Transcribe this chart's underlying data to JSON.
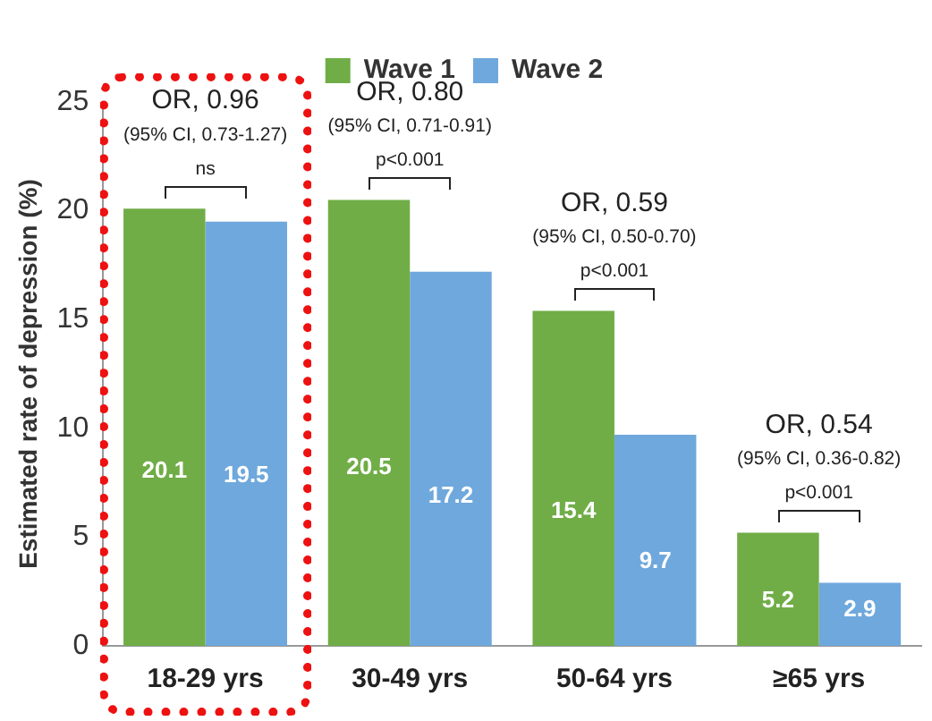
{
  "chart_data": {
    "type": "bar",
    "ylabel": "Estimated rate of depression (%)",
    "categories": [
      "18-29 yrs",
      "30-49 yrs",
      "50-64 yrs",
      "≥65 yrs"
    ],
    "series": [
      {
        "name": "Wave 1",
        "color": "#70ad47",
        "values": [
          20.1,
          20.5,
          15.4,
          5.2
        ]
      },
      {
        "name": "Wave 2",
        "color": "#6fa8dc",
        "values": [
          19.5,
          17.2,
          9.7,
          2.9
        ]
      }
    ],
    "ylim": [
      0,
      25
    ],
    "yticks": [
      0,
      5,
      10,
      15,
      20,
      25
    ],
    "grid": false,
    "legend": "top",
    "data_labels": true,
    "annotations": [
      "OR, 0.96",
      "(95% CI, 0.73-1.27)",
      "ns",
      "OR, 0.80",
      "(95% CI, 0.71-0.91)",
      "p<0.001",
      "OR, 0.59",
      "(95% CI, 0.50-0.70)",
      "p<0.001",
      "OR, 0.54",
      "(95% CI, 0.36-0.82)",
      "p<0.001"
    ]
  }
}
